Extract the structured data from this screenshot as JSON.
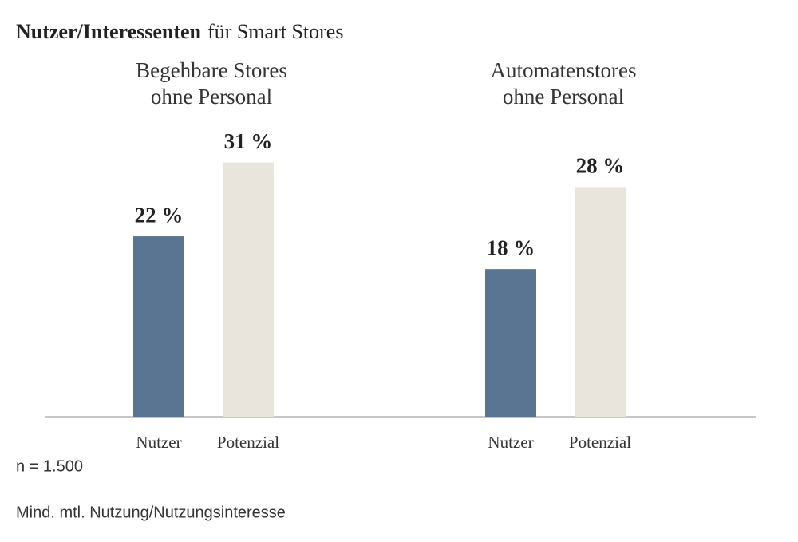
{
  "chart_data": {
    "type": "grouped_bar",
    "title": "Nutzer/Interessenten",
    "subtitle": "für Smart Stores",
    "colors": [
      "#5a7592",
      "#e9e5dd"
    ],
    "groups": [
      {
        "title": [
          "Begehbare Stores",
          "ohne Personal"
        ],
        "categories": [
          "Nutzer",
          "Potenzial"
        ],
        "values": [
          22,
          31
        ],
        "value_labels": [
          "22 %",
          "31 %"
        ]
      },
      {
        "title": [
          "Automatenstores",
          "ohne Personal"
        ],
        "categories": [
          "Nutzer",
          "Potenzial"
        ],
        "values": [
          18,
          28
        ],
        "value_labels": [
          "18 %",
          "28 %"
        ]
      }
    ],
    "notes": [
      "n = 1.500",
      "Mind. mtl. Nutzung/Nutzungsinteresse"
    ]
  }
}
